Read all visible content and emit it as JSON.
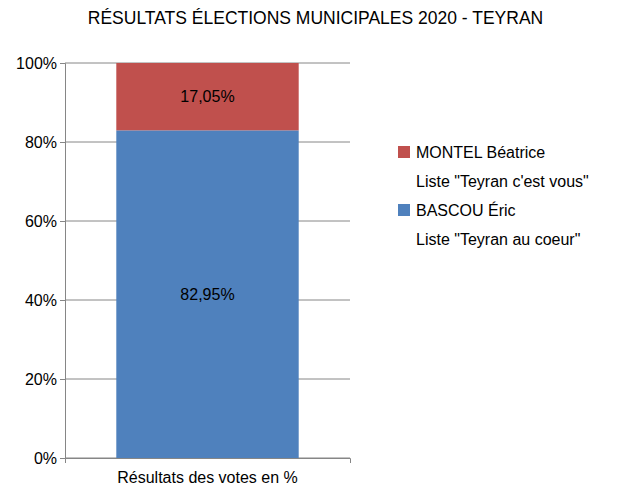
{
  "chart_data": {
    "type": "bar",
    "title": "RÉSULTATS ÉLECTIONS MUNICIPALES 2020 - TEYRAN",
    "categories": [
      "Résultats des votes en %"
    ],
    "stacked": true,
    "series": [
      {
        "name": "BASCOU Éric\nListe \"Teyran au coeur\"",
        "color": "#4f81bd",
        "values": [
          82.95
        ],
        "value_labels": [
          "82,95%"
        ]
      },
      {
        "name": "MONTEL Béatrice\nListe \"Teyran c'est vous\"",
        "color": "#c0504d",
        "values": [
          17.05
        ],
        "value_labels": [
          "17,05%"
        ]
      }
    ],
    "ylim": [
      0,
      100
    ],
    "yticks": [
      {
        "value": 0,
        "label": "0%"
      },
      {
        "value": 20,
        "label": "20%"
      },
      {
        "value": 40,
        "label": "40%"
      },
      {
        "value": 60,
        "label": "60%"
      },
      {
        "value": 80,
        "label": "80%"
      },
      {
        "value": 100,
        "label": "100%"
      }
    ],
    "grid": true,
    "legend": "right",
    "data_labels": true
  }
}
